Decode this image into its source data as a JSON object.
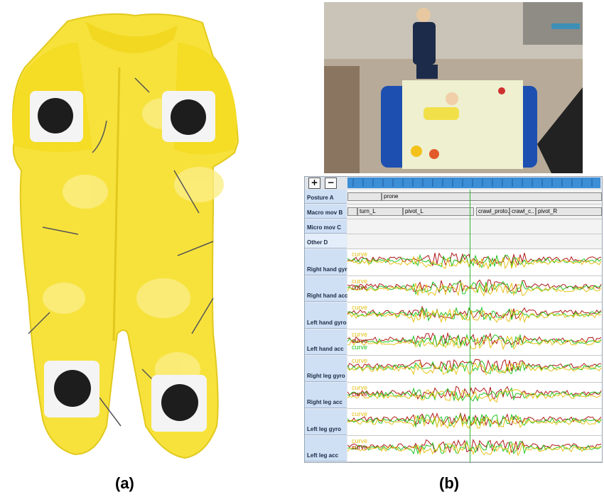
{
  "captions": {
    "a": "(a)",
    "b": "(b)"
  },
  "tool": {
    "zoom_in": "+",
    "zoom_out": "−",
    "tiers": [
      {
        "label": "Posture A",
        "segments": [
          {
            "text": ""
          },
          {
            "text": "prone"
          }
        ]
      },
      {
        "label": "Macro mov B",
        "segments": [
          {
            "text": ""
          },
          {
            "text": "turn_L"
          },
          {
            "text": "pivot_L"
          },
          {
            "text": "crawl_proto."
          },
          {
            "text": "crawl_c.."
          },
          {
            "text": "pivot_R"
          }
        ]
      },
      {
        "label": "Micro mov C",
        "segments": []
      },
      {
        "label": "Other D",
        "segments": []
      }
    ],
    "signals": [
      {
        "label": "Right hand gyro",
        "curve_labels": [
          "curve"
        ]
      },
      {
        "label": "Right hand acc",
        "curve_labels": [
          "curve",
          "curve"
        ]
      },
      {
        "label": "Left hand gyro",
        "curve_labels": [
          "curve"
        ]
      },
      {
        "label": "Left hand acc",
        "curve_labels": [
          "curve",
          "curve",
          "curve"
        ]
      },
      {
        "label": "Right leg gyro",
        "curve_labels": [
          "curve"
        ]
      },
      {
        "label": "Right leg acc",
        "curve_labels": [
          "curve",
          "curve"
        ]
      },
      {
        "label": "Left leg gyro",
        "curve_labels": [
          "curve"
        ]
      },
      {
        "label": "Left leg acc",
        "curve_labels": [
          "curve",
          "curve"
        ]
      }
    ]
  },
  "colors": {
    "curve_red": "#b01818",
    "curve_green": "#22c422",
    "curve_yellow": "#e6c21a",
    "suit_yellow": "#f7e23c",
    "sensor_black": "#1d1d1d",
    "timeline_blue": "#3c8fd6",
    "mat_blue": "#1d4fb0"
  },
  "icons": {
    "zoom_in": "plus-icon",
    "zoom_out": "minus-icon"
  }
}
